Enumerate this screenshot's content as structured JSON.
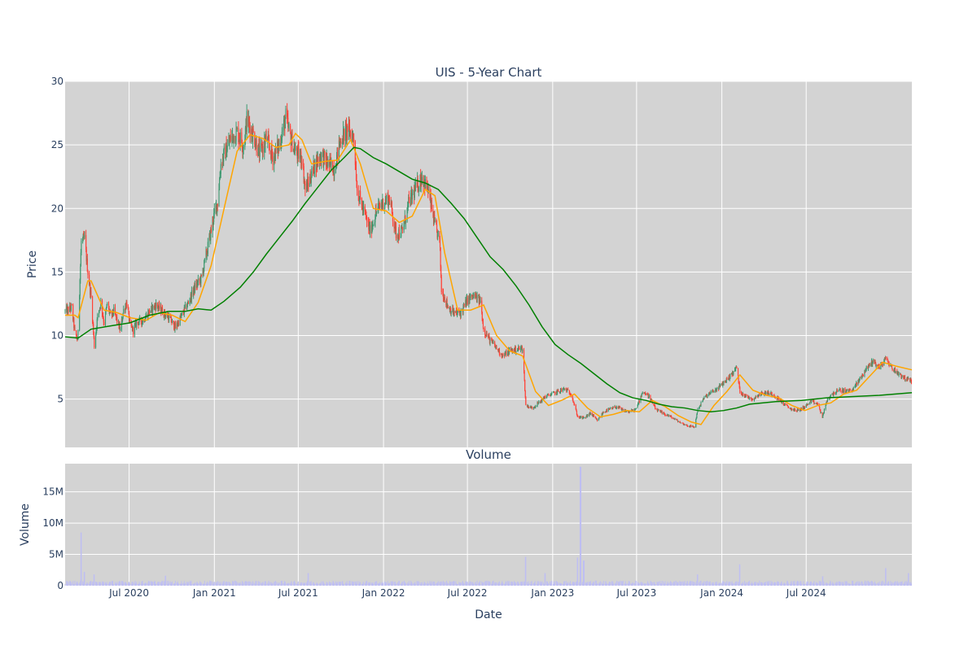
{
  "chart_data": [
    {
      "type": "candlestick",
      "title": "UIS - 5-Year Chart",
      "ylabel": "Price",
      "ylim": [
        1.2,
        30
      ],
      "yticks": [
        5,
        10,
        15,
        20,
        25,
        30
      ],
      "xlim": [
        "2020-02-14",
        "2025-02-14"
      ],
      "grid": true,
      "legend": "none",
      "colors": {
        "up": "#3d9970",
        "down": "#ff4136",
        "ma_short": "#ffa500",
        "ma_long": "#008000",
        "plot_bg": "#d3d3d3"
      },
      "price_path": [
        [
          "2020-02-14",
          11.9
        ],
        [
          "2020-02-28",
          12.2
        ],
        [
          "2020-03-06",
          10.2
        ],
        [
          "2020-03-12",
          9.6
        ],
        [
          "2020-03-20",
          17.4
        ],
        [
          "2020-03-27",
          17.6
        ],
        [
          "2020-04-03",
          15.0
        ],
        [
          "2020-04-10",
          13.0
        ],
        [
          "2020-04-17",
          9.2
        ],
        [
          "2020-04-24",
          11.5
        ],
        [
          "2020-05-01",
          12.6
        ],
        [
          "2020-05-08",
          11.0
        ],
        [
          "2020-05-15",
          12.5
        ],
        [
          "2020-05-22",
          11.5
        ],
        [
          "2020-05-29",
          11.9
        ],
        [
          "2020-06-05",
          11.2
        ],
        [
          "2020-06-12",
          10.4
        ],
        [
          "2020-06-19",
          12.0
        ],
        [
          "2020-06-26",
          12.6
        ],
        [
          "2020-07-03",
          10.8
        ],
        [
          "2020-07-10",
          10.4
        ],
        [
          "2020-07-17",
          11.0
        ],
        [
          "2020-07-31",
          11.2
        ],
        [
          "2020-08-14",
          11.9
        ],
        [
          "2020-08-28",
          12.4
        ],
        [
          "2020-09-11",
          11.9
        ],
        [
          "2020-09-25",
          11.4
        ],
        [
          "2020-10-09",
          10.6
        ],
        [
          "2020-10-23",
          11.6
        ],
        [
          "2020-11-06",
          12.6
        ],
        [
          "2020-11-20",
          13.8
        ],
        [
          "2020-12-04",
          14.5
        ],
        [
          "2020-12-18",
          17.0
        ],
        [
          "2020-12-31",
          19.4
        ],
        [
          "2021-01-08",
          20.5
        ],
        [
          "2021-01-15",
          23.5
        ],
        [
          "2021-01-22",
          24.2
        ],
        [
          "2021-02-05",
          25.5
        ],
        [
          "2021-02-19",
          26.0
        ],
        [
          "2021-03-05",
          25.0
        ],
        [
          "2021-03-12",
          27.0
        ],
        [
          "2021-03-26",
          25.8
        ],
        [
          "2021-04-09",
          24.3
        ],
        [
          "2021-04-23",
          25.5
        ],
        [
          "2021-05-07",
          24.0
        ],
        [
          "2021-05-21",
          25.0
        ],
        [
          "2021-06-04",
          27.2
        ],
        [
          "2021-06-11",
          26.0
        ],
        [
          "2021-06-25",
          24.4
        ],
        [
          "2021-07-09",
          24.0
        ],
        [
          "2021-07-16",
          21.5
        ],
        [
          "2021-07-23",
          22.0
        ],
        [
          "2021-08-06",
          23.5
        ],
        [
          "2021-08-20",
          24.2
        ],
        [
          "2021-09-03",
          23.5
        ],
        [
          "2021-09-17",
          23.2
        ],
        [
          "2021-10-01",
          25.5
        ],
        [
          "2021-10-15",
          26.2
        ],
        [
          "2021-10-29",
          25.6
        ],
        [
          "2021-11-05",
          21.5
        ],
        [
          "2021-11-19",
          19.8
        ],
        [
          "2021-12-03",
          18.2
        ],
        [
          "2021-12-17",
          19.8
        ],
        [
          "2021-12-31",
          20.5
        ],
        [
          "2022-01-14",
          20.8
        ],
        [
          "2022-01-28",
          18.0
        ],
        [
          "2022-02-11",
          18.2
        ],
        [
          "2022-02-25",
          20.5
        ],
        [
          "2022-03-11",
          21.5
        ],
        [
          "2022-03-25",
          22.5
        ],
        [
          "2022-04-08",
          21.3
        ],
        [
          "2022-04-22",
          18.6
        ],
        [
          "2022-05-02",
          17.5
        ],
        [
          "2022-05-06",
          13.6
        ],
        [
          "2022-05-20",
          12.3
        ],
        [
          "2022-06-03",
          11.7
        ],
        [
          "2022-06-17",
          11.8
        ],
        [
          "2022-07-01",
          12.8
        ],
        [
          "2022-07-15",
          13.1
        ],
        [
          "2022-07-29",
          12.7
        ],
        [
          "2022-08-05",
          10.5
        ],
        [
          "2022-08-19",
          9.6
        ],
        [
          "2022-09-02",
          9.0
        ],
        [
          "2022-09-16",
          8.4
        ],
        [
          "2022-09-30",
          8.8
        ],
        [
          "2022-10-14",
          8.9
        ],
        [
          "2022-10-28",
          9.0
        ],
        [
          "2022-11-04",
          4.5
        ],
        [
          "2022-11-18",
          4.3
        ],
        [
          "2022-12-02",
          4.7
        ],
        [
          "2022-12-16",
          5.2
        ],
        [
          "2022-12-30",
          5.4
        ],
        [
          "2023-01-13",
          5.6
        ],
        [
          "2023-01-27",
          5.8
        ],
        [
          "2023-02-10",
          5.4
        ],
        [
          "2023-02-24",
          3.6
        ],
        [
          "2023-03-10",
          3.5
        ],
        [
          "2023-03-24",
          3.9
        ],
        [
          "2023-04-07",
          3.3
        ],
        [
          "2023-04-21",
          4.0
        ],
        [
          "2023-05-05",
          4.2
        ],
        [
          "2023-05-19",
          4.4
        ],
        [
          "2023-06-02",
          4.1
        ],
        [
          "2023-06-16",
          4.0
        ],
        [
          "2023-06-30",
          4.2
        ],
        [
          "2023-07-14",
          5.6
        ],
        [
          "2023-07-28",
          5.2
        ],
        [
          "2023-08-11",
          4.2
        ],
        [
          "2023-08-25",
          3.9
        ],
        [
          "2023-09-08",
          3.7
        ],
        [
          "2023-09-22",
          3.4
        ],
        [
          "2023-10-06",
          3.1
        ],
        [
          "2023-10-20",
          2.9
        ],
        [
          "2023-11-03",
          2.8
        ],
        [
          "2023-11-10",
          4.2
        ],
        [
          "2023-11-24",
          5.1
        ],
        [
          "2023-12-08",
          5.5
        ],
        [
          "2023-12-22",
          5.8
        ],
        [
          "2024-01-05",
          6.3
        ],
        [
          "2024-01-19",
          6.8
        ],
        [
          "2024-02-02",
          7.5
        ],
        [
          "2024-02-09",
          5.6
        ],
        [
          "2024-02-23",
          5.2
        ],
        [
          "2024-03-08",
          5.0
        ],
        [
          "2024-03-22",
          5.4
        ],
        [
          "2024-04-05",
          5.5
        ],
        [
          "2024-04-19",
          5.4
        ],
        [
          "2024-05-03",
          5.0
        ],
        [
          "2024-05-17",
          4.5
        ],
        [
          "2024-05-31",
          4.2
        ],
        [
          "2024-06-14",
          4.1
        ],
        [
          "2024-06-28",
          4.4
        ],
        [
          "2024-07-12",
          4.8
        ],
        [
          "2024-07-26",
          4.6
        ],
        [
          "2024-08-05",
          3.6
        ],
        [
          "2024-08-16",
          5.0
        ],
        [
          "2024-08-30",
          5.5
        ],
        [
          "2024-09-13",
          5.7
        ],
        [
          "2024-09-27",
          5.6
        ],
        [
          "2024-10-11",
          5.8
        ],
        [
          "2024-10-25",
          6.6
        ],
        [
          "2024-11-08",
          7.4
        ],
        [
          "2024-11-22",
          8.0
        ],
        [
          "2024-12-06",
          7.5
        ],
        [
          "2024-12-20",
          8.2
        ],
        [
          "2025-01-03",
          7.4
        ],
        [
          "2025-01-17",
          7.0
        ],
        [
          "2025-01-31",
          6.6
        ],
        [
          "2025-02-14",
          6.4
        ]
      ],
      "ma_short": [
        [
          "2020-02-14",
          11.6
        ],
        [
          "2020-03-06",
          11.6
        ],
        [
          "2020-03-13",
          11.4
        ],
        [
          "2020-04-03",
          14.3
        ],
        [
          "2020-04-10",
          14.3
        ],
        [
          "2020-05-08",
          12.0
        ],
        [
          "2020-06-05",
          11.8
        ],
        [
          "2020-07-03",
          11.4
        ],
        [
          "2020-08-07",
          11.2
        ],
        [
          "2020-09-04",
          11.8
        ],
        [
          "2020-10-02",
          11.6
        ],
        [
          "2020-10-30",
          11.1
        ],
        [
          "2020-11-27",
          12.6
        ],
        [
          "2020-12-25",
          15.5
        ],
        [
          "2021-01-22",
          20.0
        ],
        [
          "2021-02-19",
          24.5
        ],
        [
          "2021-03-19",
          25.8
        ],
        [
          "2021-04-16",
          25.5
        ],
        [
          "2021-05-14",
          24.8
        ],
        [
          "2021-06-11",
          25.0
        ],
        [
          "2021-06-25",
          25.9
        ],
        [
          "2021-07-09",
          25.4
        ],
        [
          "2021-07-30",
          23.5
        ],
        [
          "2021-08-27",
          23.7
        ],
        [
          "2021-09-24",
          23.8
        ],
        [
          "2021-10-22",
          25.4
        ],
        [
          "2021-11-12",
          23.5
        ],
        [
          "2021-12-10",
          20.0
        ],
        [
          "2022-01-07",
          19.8
        ],
        [
          "2022-02-04",
          18.9
        ],
        [
          "2022-03-04",
          19.4
        ],
        [
          "2022-04-01",
          21.5
        ],
        [
          "2022-04-22",
          21.0
        ],
        [
          "2022-05-13",
          16.5
        ],
        [
          "2022-06-10",
          12.0
        ],
        [
          "2022-07-08",
          12.0
        ],
        [
          "2022-08-05",
          12.4
        ],
        [
          "2022-09-02",
          10.0
        ],
        [
          "2022-09-30",
          8.8
        ],
        [
          "2022-10-28",
          8.4
        ],
        [
          "2022-11-25",
          5.6
        ],
        [
          "2022-12-23",
          4.5
        ],
        [
          "2023-01-20",
          4.9
        ],
        [
          "2023-02-17",
          5.4
        ],
        [
          "2023-03-17",
          4.3
        ],
        [
          "2023-04-14",
          3.6
        ],
        [
          "2023-05-12",
          3.8
        ],
        [
          "2023-06-09",
          4.1
        ],
        [
          "2023-07-07",
          4.0
        ],
        [
          "2023-08-04",
          4.9
        ],
        [
          "2023-09-01",
          4.4
        ],
        [
          "2023-09-29",
          3.7
        ],
        [
          "2023-10-27",
          3.2
        ],
        [
          "2023-11-17",
          3.0
        ],
        [
          "2023-12-15",
          4.5
        ],
        [
          "2024-01-12",
          5.6
        ],
        [
          "2024-02-09",
          6.9
        ],
        [
          "2024-03-08",
          5.7
        ],
        [
          "2024-04-05",
          5.3
        ],
        [
          "2024-05-03",
          5.1
        ],
        [
          "2024-05-31",
          4.5
        ],
        [
          "2024-06-28",
          4.1
        ],
        [
          "2024-07-26",
          4.5
        ],
        [
          "2024-08-23",
          4.7
        ],
        [
          "2024-09-20",
          5.4
        ],
        [
          "2024-10-18",
          5.7
        ],
        [
          "2024-11-15",
          6.8
        ],
        [
          "2024-12-13",
          7.9
        ],
        [
          "2025-01-10",
          7.6
        ],
        [
          "2025-02-14",
          7.3
        ]
      ],
      "ma_long": [
        [
          "2020-02-14",
          9.9
        ],
        [
          "2020-03-13",
          9.8
        ],
        [
          "2020-04-10",
          10.5
        ],
        [
          "2020-05-29",
          10.8
        ],
        [
          "2020-07-03",
          11.0
        ],
        [
          "2020-08-14",
          11.6
        ],
        [
          "2020-09-25",
          11.9
        ],
        [
          "2020-10-30",
          11.9
        ],
        [
          "2020-11-27",
          12.1
        ],
        [
          "2020-12-25",
          12.0
        ],
        [
          "2021-01-22",
          12.7
        ],
        [
          "2021-02-26",
          13.8
        ],
        [
          "2021-03-26",
          15.0
        ],
        [
          "2021-04-23",
          16.4
        ],
        [
          "2021-05-21",
          17.7
        ],
        [
          "2021-06-18",
          19.0
        ],
        [
          "2021-07-16",
          20.4
        ],
        [
          "2021-08-13",
          21.7
        ],
        [
          "2021-09-10",
          23.0
        ],
        [
          "2021-10-08",
          24.0
        ],
        [
          "2021-10-29",
          24.8
        ],
        [
          "2021-11-12",
          24.7
        ],
        [
          "2021-12-10",
          24.0
        ],
        [
          "2022-01-07",
          23.5
        ],
        [
          "2022-02-04",
          22.9
        ],
        [
          "2022-03-04",
          22.3
        ],
        [
          "2022-04-01",
          22.0
        ],
        [
          "2022-04-29",
          21.5
        ],
        [
          "2022-05-27",
          20.4
        ],
        [
          "2022-06-24",
          19.2
        ],
        [
          "2022-07-22",
          17.7
        ],
        [
          "2022-08-19",
          16.2
        ],
        [
          "2022-09-16",
          15.2
        ],
        [
          "2022-10-14",
          13.9
        ],
        [
          "2022-11-11",
          12.4
        ],
        [
          "2022-12-09",
          10.7
        ],
        [
          "2023-01-06",
          9.3
        ],
        [
          "2023-02-03",
          8.5
        ],
        [
          "2023-03-03",
          7.8
        ],
        [
          "2023-03-31",
          7.0
        ],
        [
          "2023-04-28",
          6.2
        ],
        [
          "2023-05-26",
          5.5
        ],
        [
          "2023-06-23",
          5.1
        ],
        [
          "2023-07-21",
          4.9
        ],
        [
          "2023-08-18",
          4.6
        ],
        [
          "2023-09-15",
          4.4
        ],
        [
          "2023-10-13",
          4.3
        ],
        [
          "2023-11-10",
          4.1
        ],
        [
          "2023-12-08",
          4.0
        ],
        [
          "2024-01-05",
          4.1
        ],
        [
          "2024-02-02",
          4.3
        ],
        [
          "2024-03-01",
          4.6
        ],
        [
          "2024-04-26",
          4.8
        ],
        [
          "2024-06-21",
          4.9
        ],
        [
          "2024-08-16",
          5.1
        ],
        [
          "2024-10-11",
          5.2
        ],
        [
          "2024-12-06",
          5.3
        ],
        [
          "2025-02-14",
          5.5
        ]
      ]
    },
    {
      "type": "bar",
      "title": "Volume",
      "xlabel": "Date",
      "ylabel": "Volume",
      "ylim": [
        0,
        19500000
      ],
      "yticks": [
        0,
        5000000,
        10000000,
        15000000
      ],
      "ytick_labels": [
        "0",
        "5M",
        "10M",
        "15M"
      ],
      "xticks": [
        "2020-07-01",
        "2021-01-01",
        "2021-07-01",
        "2022-01-01",
        "2022-07-01",
        "2023-01-01",
        "2023-07-01",
        "2024-01-01",
        "2024-07-01"
      ],
      "xtick_labels": [
        "Jul 2020",
        "Jan 2021",
        "Jul 2021",
        "Jan 2022",
        "Jul 2022",
        "Jan 2023",
        "Jul 2023",
        "Jan 2024",
        "Jul 2024"
      ],
      "baseline_volume": 500000,
      "notable_volumes": [
        [
          "2020-03-20",
          8500000
        ],
        [
          "2020-03-27",
          2200000
        ],
        [
          "2020-04-17",
          1800000
        ],
        [
          "2020-09-18",
          1600000
        ],
        [
          "2021-07-23",
          2000000
        ],
        [
          "2022-11-04",
          4600000
        ],
        [
          "2022-12-16",
          2000000
        ],
        [
          "2023-02-24",
          4500000
        ],
        [
          "2023-03-02",
          19000000
        ],
        [
          "2023-03-09",
          4000000
        ],
        [
          "2023-11-10",
          1800000
        ],
        [
          "2024-02-09",
          3400000
        ],
        [
          "2024-08-05",
          1500000
        ],
        [
          "2024-12-20",
          2800000
        ],
        [
          "2025-02-07",
          2000000
        ]
      ],
      "colors": {
        "bar": "#bfbff2",
        "plot_bg": "#d3d3d3"
      }
    }
  ]
}
